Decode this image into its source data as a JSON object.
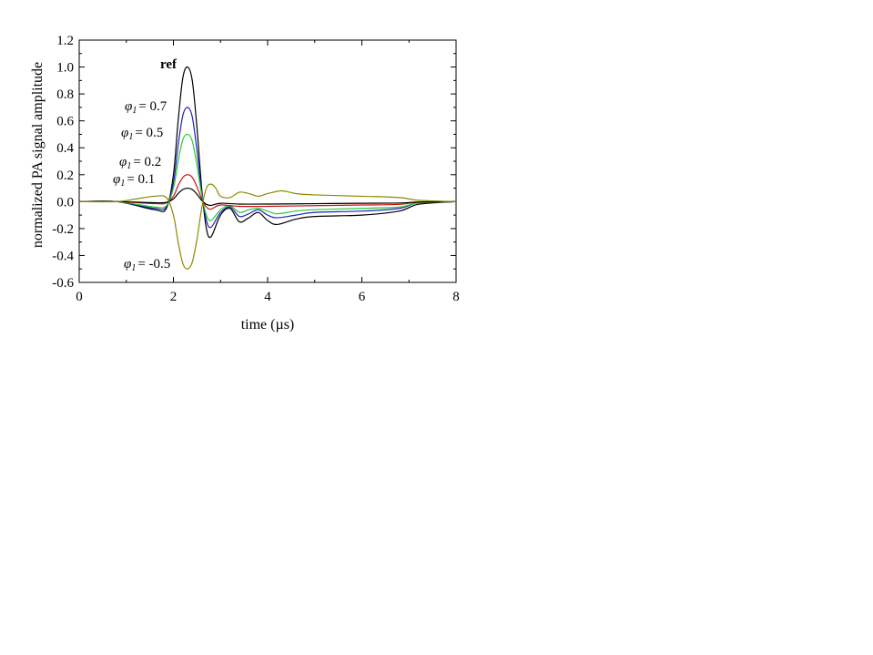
{
  "chart_data": {
    "type": "line",
    "xlabel": "time (µs)",
    "ylabel": "normalized PA signal amplitude",
    "xlim": [
      0,
      8
    ],
    "ylim": [
      -0.6,
      1.2
    ],
    "x_ticks": [
      "0",
      "2",
      "4",
      "6",
      "8"
    ],
    "y_ticks": [
      "-0.6",
      "-0.4",
      "-0.2",
      "0.0",
      "0.2",
      "0.4",
      "0.6",
      "0.8",
      "1.0",
      "1.2"
    ],
    "grid": false,
    "legend": "none",
    "series": [
      {
        "name": "ref",
        "color": "#000000",
        "x": [
          0,
          0.8,
          1.6,
          1.85,
          2.0,
          2.1,
          2.2,
          2.3,
          2.4,
          2.5,
          2.6,
          2.7,
          2.8,
          3.0,
          3.2,
          3.4,
          3.6,
          3.8,
          4.0,
          4.2,
          4.6,
          5.0,
          6.0,
          6.8,
          7.2,
          8.0
        ],
        "values": [
          0,
          0,
          -0.06,
          -0.05,
          0.2,
          0.6,
          0.92,
          1.0,
          0.9,
          0.55,
          0.1,
          -0.2,
          -0.26,
          -0.1,
          -0.05,
          -0.15,
          -0.12,
          -0.08,
          -0.14,
          -0.17,
          -0.13,
          -0.11,
          -0.1,
          -0.07,
          -0.02,
          0
        ]
      },
      {
        "label_prefix": "φ",
        "label_sub": "1",
        "label_value": "= 0.7",
        "color": "#1f1fbf",
        "x": [
          0,
          0.8,
          1.6,
          1.85,
          2.0,
          2.1,
          2.2,
          2.3,
          2.4,
          2.5,
          2.6,
          2.7,
          2.8,
          3.0,
          3.2,
          3.4,
          3.6,
          3.8,
          4.0,
          4.2,
          4.6,
          5.0,
          6.0,
          6.8,
          7.2,
          8.0
        ],
        "values": [
          0,
          0,
          -0.05,
          -0.04,
          0.14,
          0.42,
          0.64,
          0.7,
          0.63,
          0.38,
          0.07,
          -0.14,
          -0.19,
          -0.08,
          -0.04,
          -0.11,
          -0.09,
          -0.06,
          -0.1,
          -0.12,
          -0.1,
          -0.08,
          -0.07,
          -0.05,
          -0.01,
          0
        ]
      },
      {
        "label_prefix": "φ",
        "label_sub": "1",
        "label_value": "= 0.5",
        "color": "#22cc33",
        "x": [
          0,
          0.8,
          1.6,
          1.85,
          2.0,
          2.1,
          2.2,
          2.3,
          2.4,
          2.5,
          2.6,
          2.7,
          2.8,
          3.0,
          3.2,
          3.4,
          3.6,
          3.8,
          4.0,
          4.2,
          4.6,
          5.0,
          6.0,
          6.8,
          7.2,
          8.0
        ],
        "values": [
          0,
          0,
          -0.04,
          -0.03,
          0.1,
          0.3,
          0.46,
          0.5,
          0.45,
          0.27,
          0.05,
          -0.1,
          -0.14,
          -0.06,
          -0.03,
          -0.08,
          -0.06,
          -0.05,
          -0.07,
          -0.09,
          -0.07,
          -0.06,
          -0.05,
          -0.04,
          -0.01,
          0
        ]
      },
      {
        "label_prefix": "φ",
        "label_sub": "1",
        "label_value": "= 0.2",
        "color": "#cc1111",
        "x": [
          0,
          0.8,
          1.6,
          1.85,
          2.0,
          2.1,
          2.2,
          2.3,
          2.4,
          2.5,
          2.6,
          2.7,
          2.8,
          3.0,
          3.4,
          4.0,
          5.0,
          6.0,
          6.8,
          7.2,
          8.0
        ],
        "values": [
          0,
          0,
          -0.015,
          -0.01,
          0.04,
          0.12,
          0.18,
          0.2,
          0.18,
          0.11,
          0.02,
          -0.04,
          -0.055,
          -0.025,
          -0.035,
          -0.035,
          -0.03,
          -0.025,
          -0.02,
          -0.005,
          0
        ]
      },
      {
        "label_prefix": "φ",
        "label_sub": "1",
        "label_value": "= 0.1",
        "color": "#000000",
        "x": [
          0,
          0.8,
          1.6,
          1.85,
          2.0,
          2.1,
          2.2,
          2.3,
          2.4,
          2.5,
          2.6,
          2.7,
          2.8,
          3.0,
          3.4,
          4.0,
          5.0,
          6.0,
          6.8,
          7.2,
          8.0
        ],
        "values": [
          0,
          0,
          -0.008,
          -0.005,
          0.02,
          0.06,
          0.09,
          0.1,
          0.09,
          0.055,
          0.01,
          -0.02,
          -0.028,
          -0.012,
          -0.018,
          -0.018,
          -0.015,
          -0.012,
          -0.01,
          -0.003,
          0
        ]
      },
      {
        "label_prefix": "φ",
        "label_sub": "1",
        "label_value": "= -0.5",
        "color": "#8b8b00",
        "x": [
          0,
          0.8,
          1.2,
          1.6,
          1.85,
          2.0,
          2.1,
          2.2,
          2.3,
          2.4,
          2.5,
          2.6,
          2.7,
          2.8,
          2.9,
          3.0,
          3.2,
          3.4,
          3.6,
          3.8,
          4.0,
          4.3,
          4.6,
          5.0,
          6.0,
          6.8,
          7.2,
          8.0
        ],
        "values": [
          0,
          0,
          0.02,
          0.04,
          0.03,
          -0.1,
          -0.3,
          -0.46,
          -0.5,
          -0.45,
          -0.28,
          -0.05,
          0.1,
          0.13,
          0.1,
          0.04,
          0.03,
          0.07,
          0.06,
          0.04,
          0.06,
          0.08,
          0.06,
          0.05,
          0.04,
          0.03,
          0.01,
          0
        ]
      }
    ],
    "annotations": [
      "ref",
      "φ1 = 0.7",
      "φ1 = 0.5",
      "φ1 = 0.2",
      "φ1 = 0.1",
      "φ1 = -0.5"
    ]
  },
  "labels": {
    "ref": "ref",
    "phi": "φ",
    "sub": "1",
    "v07": "= 0.7",
    "v05": "= 0.5",
    "v02": "= 0.2",
    "v01": "= 0.1",
    "vm05": "= -0.5"
  }
}
